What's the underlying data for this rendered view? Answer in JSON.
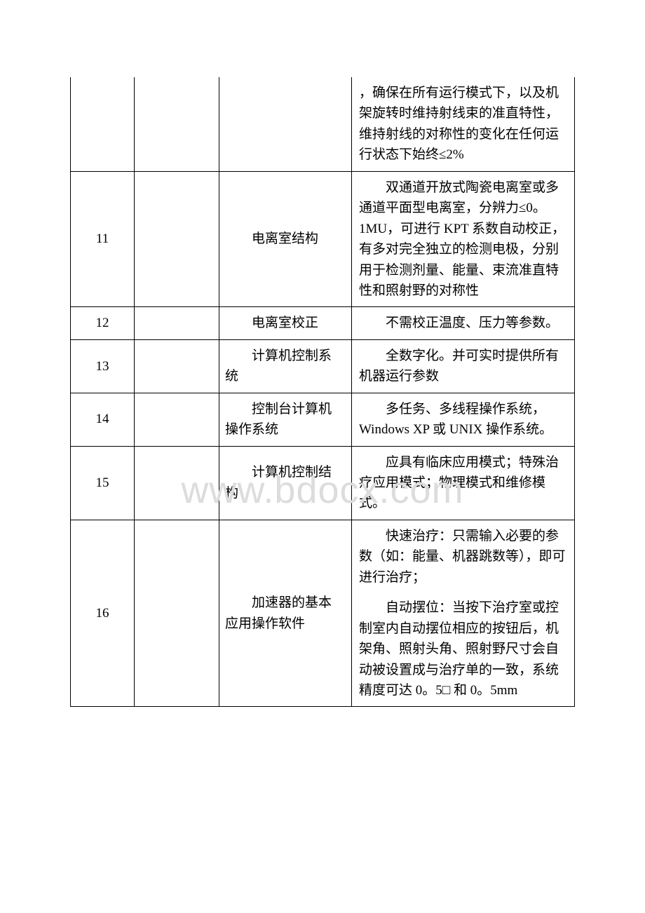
{
  "watermark": "www.bdocx.com",
  "rows": [
    {
      "num": "",
      "name": "",
      "desc": [
        "，确保在所有运行模式下，以及机架旋转时维持射线束的准直特性，维持射线的对称性的变化在任何运行状态下始终≤2%"
      ],
      "noTop": true,
      "descNoIndent": true
    },
    {
      "num": "11",
      "name": "电离室结构",
      "desc": [
        "双通道开放式陶瓷电离室或多通道平面型电离室，分辨力≤0。1MU，可进行 KPT 系数自动校正，有多对完全独立的检测电极，分别用于检测剂量、能量、束流准直特性和照射野的对称性"
      ]
    },
    {
      "num": "12",
      "name": "电离室校正",
      "desc": [
        "不需校正温度、压力等参数。"
      ]
    },
    {
      "num": "13",
      "name": "计算机控制系统",
      "desc": [
        "全数字化。并可实时提供所有机器运行参数"
      ]
    },
    {
      "num": "14",
      "name": "控制台计算机操作系统",
      "desc": [
        "多任务、多线程操作系统，Windows XP 或 UNIX 操作系统。"
      ]
    },
    {
      "num": "15",
      "name": "计算机控制结构",
      "desc": [
        "应具有临床应用模式；特殊治疗应用模式；物理模式和维修模式。"
      ]
    },
    {
      "num": "16",
      "name": "加速器的基本应用操作软件",
      "desc": [
        "快速治疗：只需输入必要的参数（如：能量、机器跳数等），即可进行治疗；",
        "自动摆位：当按下治疗室或控制室内自动摆位相应的按钮后，机架角、照射头角、照射野尺寸会自动被设置成与治疗单的一致，系统精度可达 0。5□ 和 0。5mm"
      ]
    }
  ]
}
